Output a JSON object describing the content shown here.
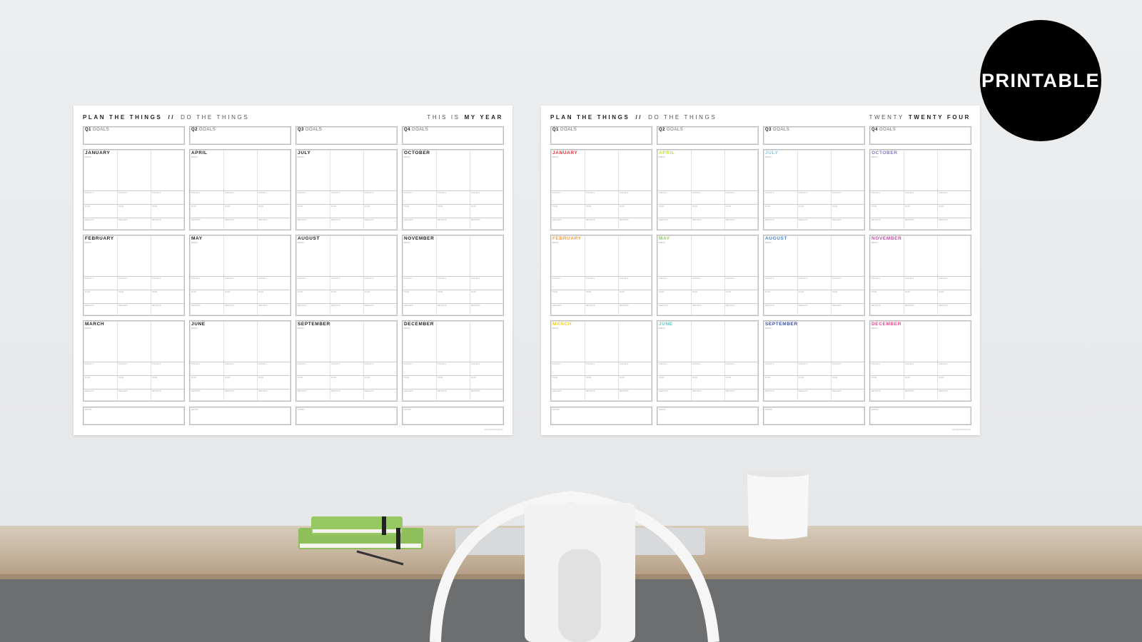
{
  "badge": "PRINTABLE",
  "header_left_bold": "PLAN THE THINGS",
  "header_sep": "//",
  "header_left_light": "DO THE THINGS",
  "posters": [
    {
      "right_light": "THIS IS",
      "right_bold": "MY YEAR",
      "colored": false
    },
    {
      "right_light": "TWENTY",
      "right_bold": "TWENTY FOUR",
      "colored": true
    }
  ],
  "goals": [
    "Q1",
    "Q2",
    "Q3",
    "Q4"
  ],
  "goals_word": "GOALS",
  "months": [
    [
      "JANUARY",
      "APRIL",
      "JULY",
      "OCTOBER"
    ],
    [
      "FEBRUARY",
      "MAY",
      "AUGUST",
      "NOVEMBER"
    ],
    [
      "MARCH",
      "JUNE",
      "SEPTEMBER",
      "DECEMBER"
    ]
  ],
  "month_colors": {
    "JANUARY": "#e8303a",
    "FEBRUARY": "#f5a040",
    "MARCH": "#f2cf2a",
    "APRIL": "#c9dc36",
    "MAY": "#8cc850",
    "JUNE": "#66c6c6",
    "JULY": "#86cae8",
    "AUGUST": "#4a80c8",
    "SEPTEMBER": "#3a50a8",
    "OCTOBER": "#8078c0",
    "NOVEMBER": "#c050a8",
    "DECEMBER": "#e84890"
  },
  "month_sublabel": "BRAIN",
  "row_labels": [
    [
      "FOCUS 1",
      "FOCUS 2",
      "FOCUS 3"
    ],
    "PLAN",
    "RESULTS"
  ],
  "notes_label": "NOTES",
  "footer": "www.planthethings.com"
}
